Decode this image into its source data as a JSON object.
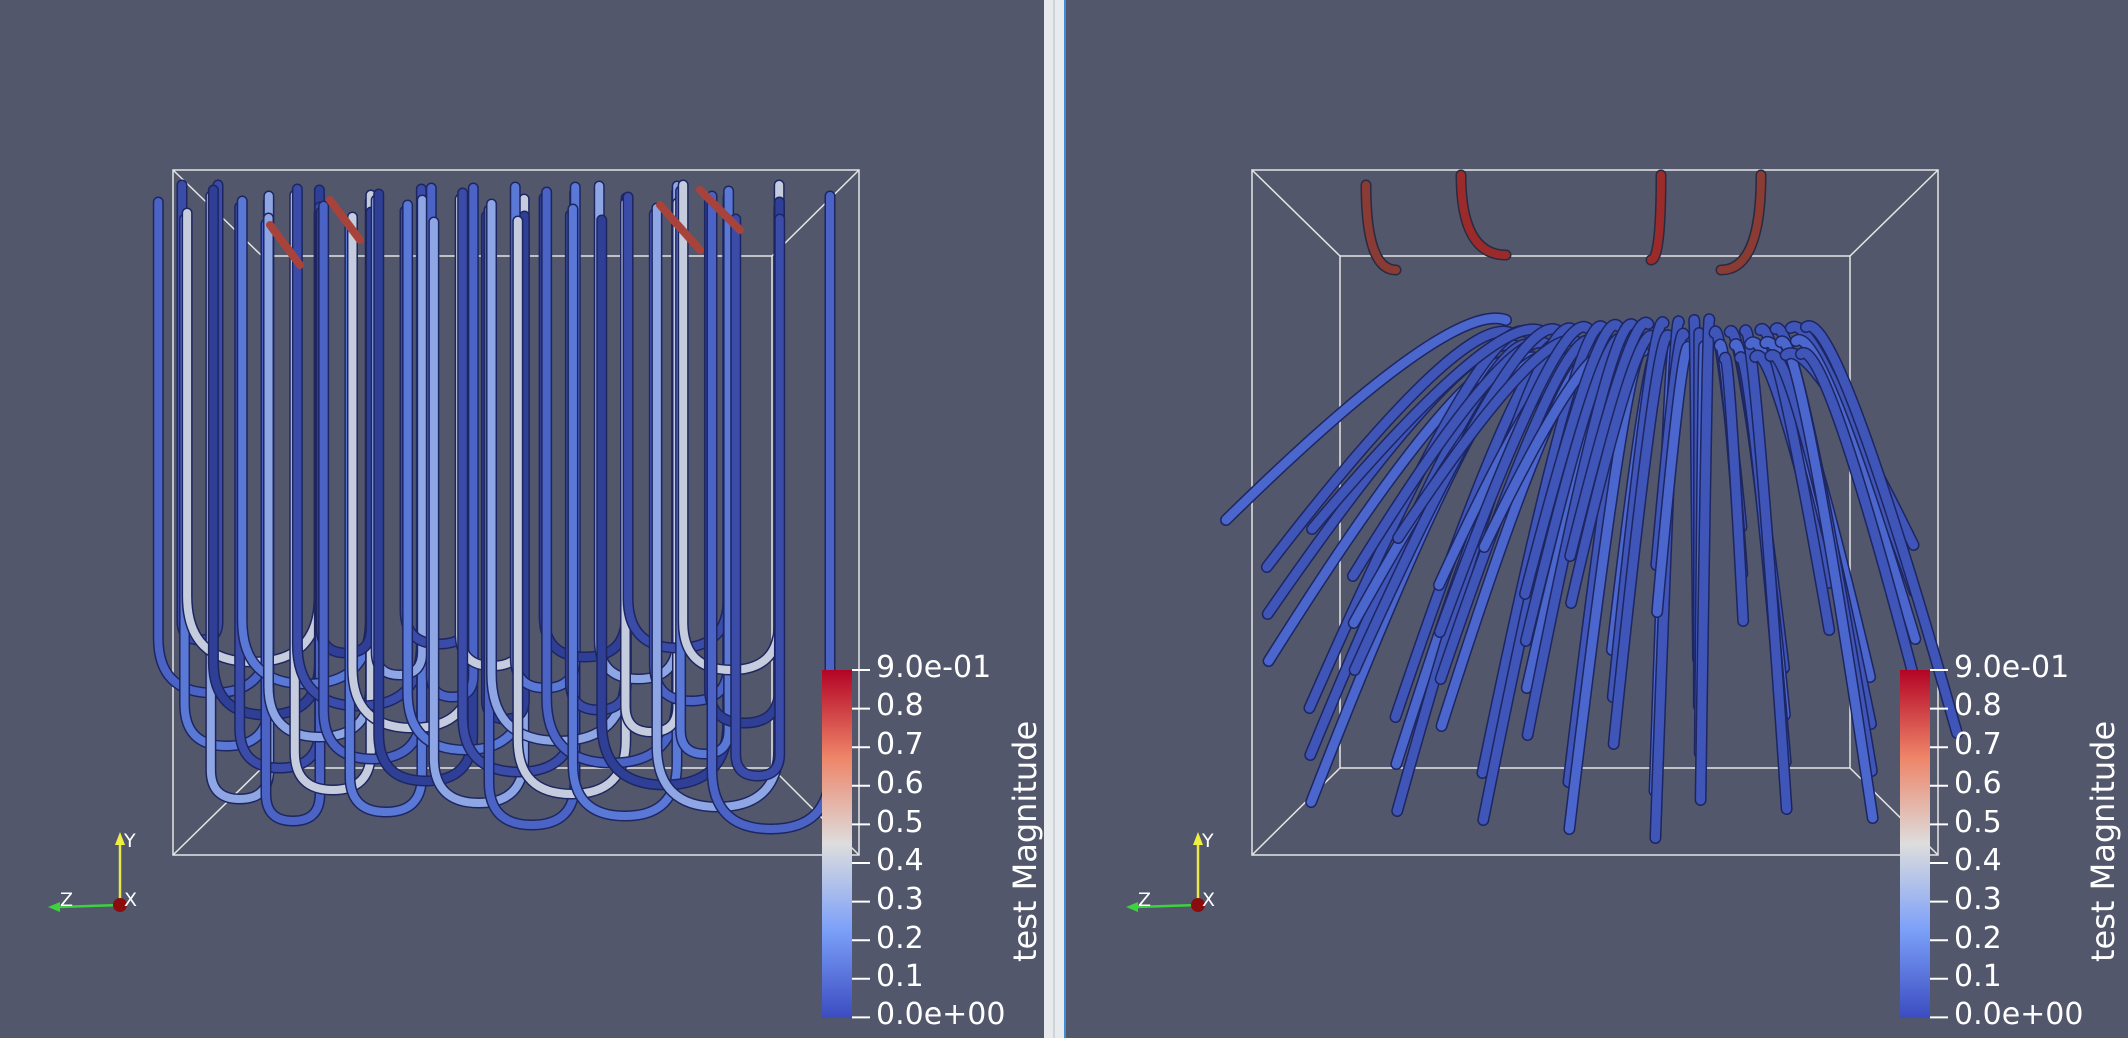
{
  "views": [
    {
      "id": "left",
      "colorbar": {
        "title": "test Magnitude",
        "labels": [
          "9.0e-01",
          "0.8",
          "0.7",
          "0.6",
          "0.5",
          "0.4",
          "0.3",
          "0.2",
          "0.1",
          "0.0e+00"
        ],
        "range": [
          0,
          0.9
        ]
      },
      "axes": {
        "y": "Y",
        "z": "Z",
        "x": "X"
      }
    },
    {
      "id": "right",
      "colorbar": {
        "title": "test Magnitude",
        "labels": [
          "9.0e-01",
          "0.8",
          "0.7",
          "0.6",
          "0.5",
          "0.4",
          "0.3",
          "0.2",
          "0.1",
          "0.0e+00"
        ],
        "range": [
          0,
          0.9
        ]
      },
      "axes": {
        "y": "Y",
        "z": "Z",
        "x": "X"
      }
    }
  ],
  "colors": {
    "background": "#52576c",
    "tube_low": "#3a4fb0",
    "tube_mid": "#d9dde8",
    "tube_high": "#b4232b",
    "outline": "#e6e6e6",
    "active_border": "#3b8fd6"
  }
}
